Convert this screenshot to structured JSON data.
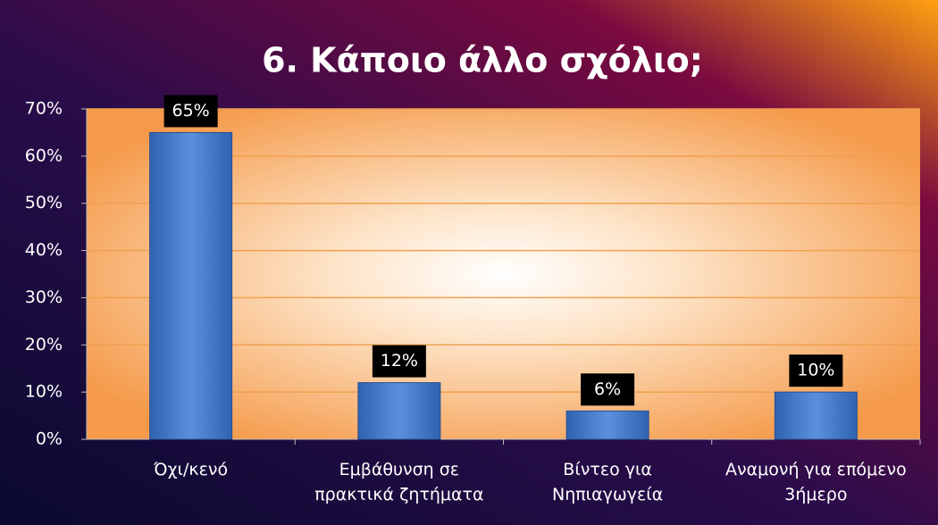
{
  "chart_data": {
    "type": "bar",
    "title": "6. Κάποιο άλλο σχόλιο;",
    "categories": [
      "Όχι/κενό",
      "Εμβάθυνση σε πρακτικά ζητήματα",
      "Βίντεο για Νηπιαγωγεία",
      "Αναμονή για επόμενο 3ήμερο"
    ],
    "values": [
      65,
      12,
      6,
      10
    ],
    "value_labels": [
      "65%",
      "12%",
      "6%",
      "10%"
    ],
    "color": "#4a7fd0",
    "ylim": [
      0,
      70
    ],
    "yticks": [
      {
        "value": 0,
        "label": "0%"
      },
      {
        "value": 10,
        "label": "10%"
      },
      {
        "value": 20,
        "label": "20%"
      },
      {
        "value": 30,
        "label": "30%"
      },
      {
        "value": 40,
        "label": "40%"
      },
      {
        "value": 50,
        "label": "50%"
      },
      {
        "value": 60,
        "label": "60%"
      },
      {
        "value": 70,
        "label": "70%"
      }
    ],
    "grid": true
  }
}
